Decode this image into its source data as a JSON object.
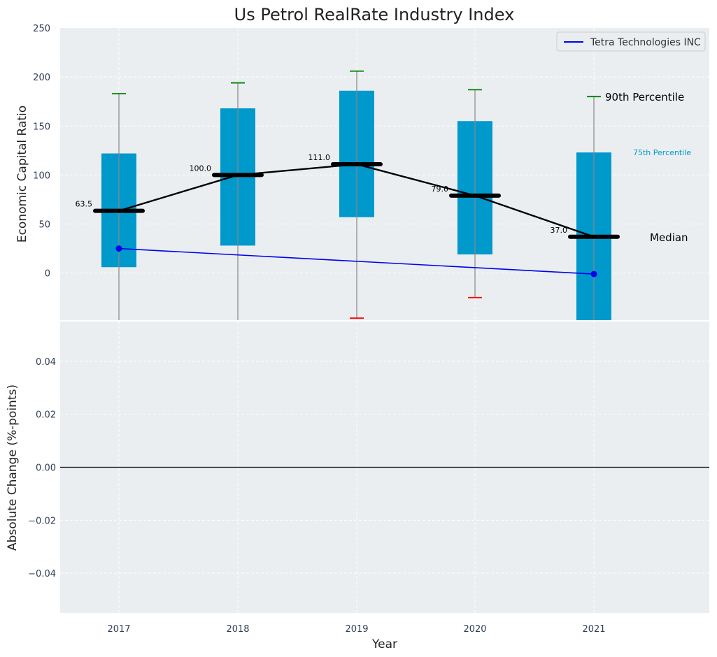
{
  "chart_data": {
    "type": "box",
    "title": "Us Petrol RealRate Industry Index",
    "xlabel": "Year",
    "categories": [
      "2017",
      "2018",
      "2019",
      "2020",
      "2021"
    ],
    "top_panel": {
      "ylabel": "Economic Capital Ratio",
      "ylim": [
        -48,
        250
      ],
      "yticks": [
        0,
        50,
        100,
        150,
        200,
        250
      ],
      "yticklabels": [
        "0",
        "50",
        "100",
        "150",
        "200",
        "250"
      ],
      "grid": true,
      "percentile_10": [
        null,
        null,
        -46,
        -25,
        null
      ],
      "percentile_25": [
        6,
        28,
        57,
        19,
        -48
      ],
      "median": [
        63.5,
        100.0,
        111.0,
        79.0,
        37.0
      ],
      "median_labels": [
        "63.5",
        "100.0",
        "111.0",
        "79.0",
        "37.0"
      ],
      "percentile_75": [
        122,
        168,
        186,
        155,
        123
      ],
      "percentile_90": [
        183,
        194,
        206,
        187,
        180
      ],
      "series": [
        {
          "name": "Tetra Technologies INC",
          "x": [
            "2017",
            "2021"
          ],
          "values": [
            25,
            -1
          ],
          "color": "#0000ee"
        }
      ],
      "annotations": {
        "p90": "90th Percentile",
        "p75": "75th Percentile",
        "median": "Median"
      },
      "legend_position": "upper right"
    },
    "bottom_panel": {
      "ylabel": "Absolute Change (%-points)",
      "ylim": [
        -0.055,
        0.055
      ],
      "yticks": [
        -0.04,
        -0.02,
        0.0,
        0.02,
        0.04
      ],
      "yticklabels": [
        "−0.04",
        "−0.02",
        "0.00",
        "0.02",
        "0.04"
      ],
      "zero_line": true,
      "grid": true
    },
    "colors": {
      "box": "#0099cc",
      "median": "#000000",
      "p90_cap": "#008000",
      "p10_cap": "#ff0000",
      "panel_bg": "#eaeef0",
      "tetra": "#0000ee"
    }
  }
}
